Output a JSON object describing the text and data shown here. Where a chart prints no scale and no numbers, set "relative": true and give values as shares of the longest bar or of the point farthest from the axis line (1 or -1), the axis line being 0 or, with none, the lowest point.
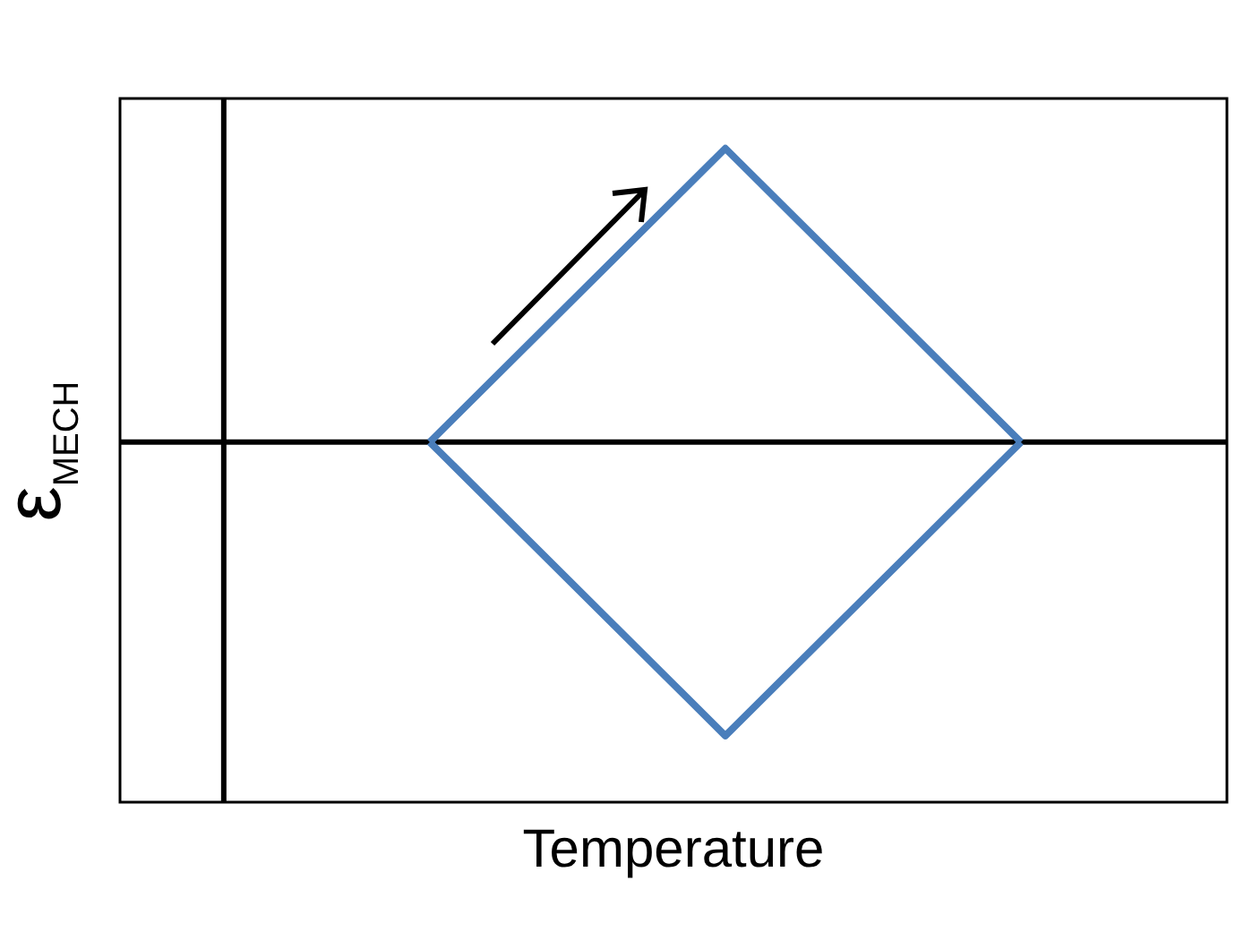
{
  "chart_data": {
    "type": "line",
    "xlabel": "Temperature",
    "ylabel": "ε$_{MECH}$",
    "relative": true,
    "marker": "none",
    "line_style": "solid",
    "categories": [
      null,
      null,
      null
    ],
    "series": [
      {
        "color": "#4a7ebb",
        "values": [
          0,
          1,
          0
        ]
      },
      {
        "color": "#4a7ebb",
        "values": [
          0,
          -1,
          0
        ]
      }
    ]
  }
}
